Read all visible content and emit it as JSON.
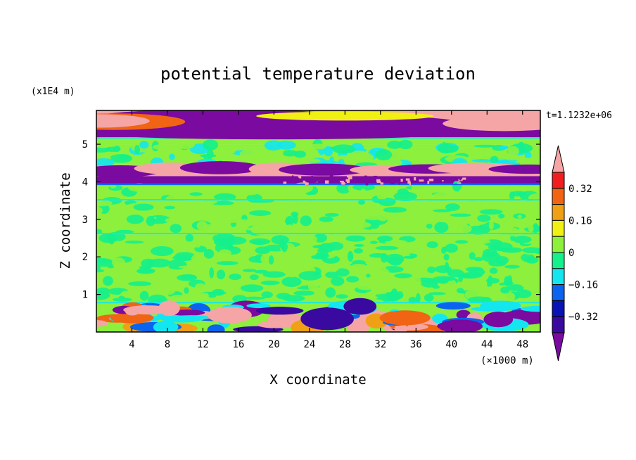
{
  "chart_data": {
    "type": "heatmap",
    "title": "potential temperature deviation",
    "xlabel": "X coordinate",
    "ylabel": "Z coordinate",
    "x_unit": "(×1000 m)",
    "y_unit": "(x1E4 m)",
    "time_label": "t=1.1232e+06",
    "xlim": [
      0,
      50
    ],
    "ylim": [
      0,
      5.9
    ],
    "x_ticks": [
      "4",
      "8",
      "12",
      "16",
      "20",
      "24",
      "28",
      "32",
      "36",
      "40",
      "44",
      "48"
    ],
    "y_ticks": [
      "1",
      "2",
      "3",
      "4",
      "5"
    ],
    "colorbar": {
      "levels": [
        -0.4,
        -0.32,
        -0.24,
        -0.16,
        -0.08,
        0,
        0.08,
        0.16,
        0.24,
        0.32,
        0.4
      ],
      "labels": [
        "0.32",
        "0.16",
        "0",
        "−0.16",
        "−0.32"
      ],
      "colors": [
        "#7a0aa0",
        "#3a0aa0",
        "#0a14b4",
        "#0a64f0",
        "#14e6f0",
        "#14f08c",
        "#8cf03c",
        "#f0f014",
        "#f0a014",
        "#f06414",
        "#f01e1e",
        "#f5a5a5"
      ]
    },
    "bands": [
      {
        "z0": 5.45,
        "z1": 5.9,
        "value": 0.45
      },
      {
        "z0": 5.15,
        "z1": 5.45,
        "value": -0.45
      },
      {
        "z0": 5.0,
        "z1": 5.15,
        "value": 0.05
      },
      {
        "z0": 4.45,
        "z1": 5.0,
        "value": 0.02
      },
      {
        "z0": 4.15,
        "z1": 4.45,
        "value": 0.45
      },
      {
        "z0": 3.95,
        "z1": 4.15,
        "value": -0.45
      },
      {
        "z0": 3.5,
        "z1": 3.95,
        "value": 0.05
      },
      {
        "z0": 2.6,
        "z1": 3.5,
        "value": 0.02
      },
      {
        "z0": 0.75,
        "z1": 2.6,
        "value": 0.02
      },
      {
        "z0": 0.0,
        "z1": 0.75,
        "value": 0.02
      }
    ]
  },
  "colors": {
    "background": "#ffffff",
    "axis": "#000000"
  }
}
